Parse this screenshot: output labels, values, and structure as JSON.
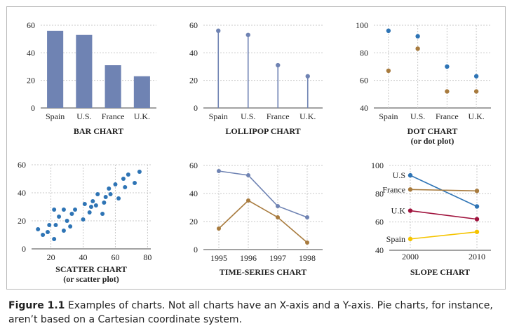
{
  "caption": {
    "label": "Figure 1.1",
    "text": "Examples of charts. Not all charts have an X-axis and a Y-axis. Pie charts, for instance, aren’t based on a Cartesian coordinate system."
  },
  "colors": {
    "blue": "#6f83b3",
    "dot_blue": "#2e74b5",
    "brown": "#a87b3e",
    "red": "#a0133d",
    "yellow": "#f5c400",
    "grid": "#c8c8c8",
    "text": "#222222"
  },
  "chart_data": [
    {
      "id": "bar",
      "type": "bar",
      "title": "BAR CHART",
      "categories": [
        "Spain",
        "U.S.",
        "France",
        "U.K."
      ],
      "values": [
        56,
        53,
        31,
        23
      ],
      "ylim": [
        0,
        60
      ],
      "yticks": [
        0,
        20,
        40,
        60
      ],
      "grid": true
    },
    {
      "id": "lollipop",
      "type": "lollipop",
      "title": "LOLLIPOP CHART",
      "categories": [
        "Spain",
        "U.S.",
        "France",
        "U.K."
      ],
      "values": [
        56,
        53,
        31,
        23
      ],
      "ylim": [
        0,
        60
      ],
      "yticks": [
        0,
        20,
        40,
        60
      ],
      "grid": true
    },
    {
      "id": "dot",
      "type": "dot",
      "title": "DOT CHART",
      "subtitle": "(or dot plot)",
      "categories": [
        "Spain",
        "U.S.",
        "France",
        "U.K."
      ],
      "series": [
        {
          "values": [
            96,
            92,
            70,
            63
          ],
          "color": "#2e74b5"
        },
        {
          "values": [
            67,
            83,
            52,
            52
          ],
          "color": "#a87b3e"
        }
      ],
      "ylim": [
        40,
        100
      ],
      "yticks": [
        40,
        60,
        80,
        100
      ],
      "grid": true
    },
    {
      "id": "scatter",
      "type": "scatter",
      "title": "SCATTER CHART",
      "subtitle": "(or scatter plot)",
      "points": [
        [
          12,
          14
        ],
        [
          15,
          10
        ],
        [
          18,
          12
        ],
        [
          19,
          17
        ],
        [
          22,
          7
        ],
        [
          22,
          28
        ],
        [
          23,
          17
        ],
        [
          25,
          23
        ],
        [
          28,
          28
        ],
        [
          28,
          13
        ],
        [
          30,
          20
        ],
        [
          32,
          16
        ],
        [
          33,
          25
        ],
        [
          35,
          28
        ],
        [
          40,
          21
        ],
        [
          41,
          32
        ],
        [
          44,
          26
        ],
        [
          45,
          30
        ],
        [
          46,
          34
        ],
        [
          48,
          31
        ],
        [
          49,
          39
        ],
        [
          52,
          25
        ],
        [
          53,
          33
        ],
        [
          54,
          37
        ],
        [
          56,
          43
        ],
        [
          57,
          39
        ],
        [
          60,
          46
        ],
        [
          62,
          36
        ],
        [
          65,
          50
        ],
        [
          66,
          44
        ],
        [
          68,
          53
        ],
        [
          72,
          47
        ],
        [
          75,
          55
        ]
      ],
      "xlim": [
        8,
        82
      ],
      "ylim": [
        0,
        60
      ],
      "xticks": [
        20,
        40,
        60,
        80
      ],
      "yticks": [
        0,
        20,
        40,
        60
      ],
      "grid": true
    },
    {
      "id": "timeseries",
      "type": "line",
      "title": "TIME-SERIES CHART",
      "x": [
        "1995",
        "1996",
        "1997",
        "1998"
      ],
      "series": [
        {
          "values": [
            56,
            53,
            31,
            23
          ],
          "color": "#6f83b3"
        },
        {
          "values": [
            15,
            35,
            23,
            5
          ],
          "color": "#a87b3e"
        }
      ],
      "ylim": [
        0,
        60
      ],
      "yticks": [
        0,
        20,
        40,
        60
      ],
      "grid": true
    },
    {
      "id": "slope",
      "type": "slope",
      "title": "SLOPE CHART",
      "x": [
        "2000",
        "2010"
      ],
      "series": [
        {
          "name": "U.S",
          "values": [
            93,
            71
          ],
          "color": "#2e74b5"
        },
        {
          "name": "France",
          "values": [
            83,
            82
          ],
          "color": "#a87b3e"
        },
        {
          "name": "U.K",
          "values": [
            68,
            62
          ],
          "color": "#a0133d"
        },
        {
          "name": "Spain",
          "values": [
            48,
            53
          ],
          "color": "#f5c400"
        }
      ],
      "ylim": [
        40,
        100
      ],
      "yticks": [
        40,
        60,
        80,
        100
      ],
      "grid": true
    }
  ]
}
